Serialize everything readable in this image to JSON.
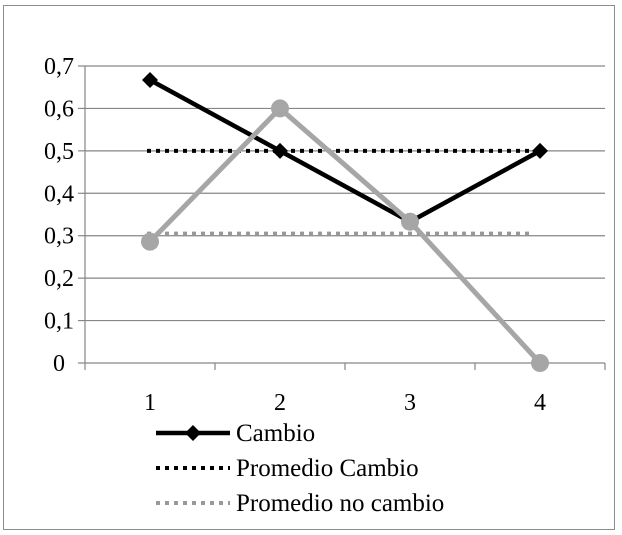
{
  "chart_data": {
    "type": "line",
    "title": "",
    "xlabel": "",
    "ylabel": "",
    "categories": [
      "1",
      "2",
      "3",
      "4"
    ],
    "ylim": [
      0,
      0.7
    ],
    "yticks": [
      "0",
      "0,1",
      "0,2",
      "0,3",
      "0,4",
      "0,5",
      "0,6",
      "0,7"
    ],
    "grid": true,
    "legend_position": "bottom-left",
    "series": [
      {
        "name": "Cambio",
        "values": [
          0.667,
          0.5,
          0.333,
          0.5
        ],
        "color": "#000000",
        "style": "solid",
        "marker": "diamond"
      },
      {
        "name": "Promedio Cambio",
        "values": [
          0.5,
          0.5,
          0.5,
          0.5
        ],
        "color": "#000000",
        "style": "dotted",
        "marker": "none"
      },
      {
        "name": "Promedio no cambio",
        "values": [
          0.305,
          0.305,
          0.305,
          0.305
        ],
        "color": "#999999",
        "style": "dotted",
        "marker": "none"
      },
      {
        "name": "",
        "values": [
          0.286,
          0.6,
          0.333,
          0.0
        ],
        "color": "#a6a6a6",
        "style": "solid",
        "marker": "circle"
      }
    ]
  }
}
